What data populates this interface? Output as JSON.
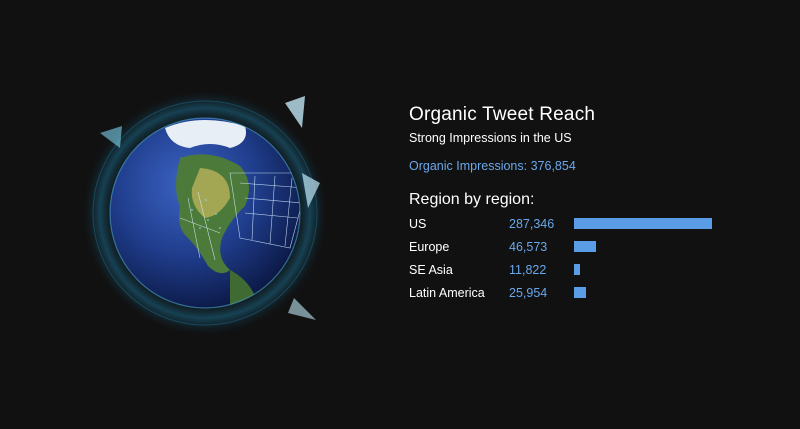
{
  "header": {
    "title": "Organic Tweet Reach",
    "subtitle": "Strong Impressions in the US",
    "impressions_label": "Organic Impressions:",
    "impressions_value": "376,854"
  },
  "regions_heading": "Region by region:",
  "colors": {
    "background": "#111111",
    "accent": "#6aa7ea",
    "bar": "#5b9ce6",
    "ocean": "#1f3c8a"
  },
  "globe": {
    "icon": "globe-icon",
    "focus": "North America"
  },
  "chart_data": {
    "type": "bar",
    "orientation": "horizontal",
    "categories": [
      "US",
      "Europe",
      "SE Asia",
      "Latin America"
    ],
    "values": [
      287346,
      46573,
      11822,
      25954
    ],
    "value_labels": [
      "287,346",
      "46,573",
      "11,822",
      "25,954"
    ],
    "title": "Region by region:",
    "xlabel": "",
    "ylabel": "",
    "xlim": [
      0,
      287346
    ],
    "grid": false
  }
}
